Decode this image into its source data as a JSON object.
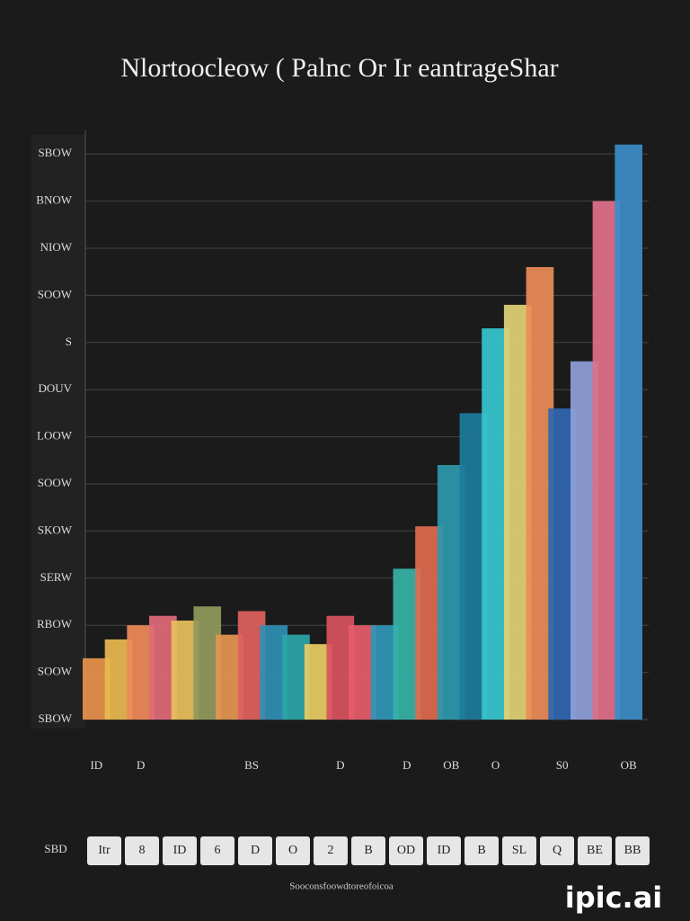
{
  "chart_data": {
    "type": "bar",
    "title": "Nlortoocleow ( Palnc Or Ir eantrageShar",
    "categories": [
      "ID",
      null,
      "D",
      null,
      null,
      null,
      null,
      "BS",
      null,
      null,
      null,
      "D",
      null,
      null,
      "D",
      null,
      "OB",
      null,
      "O",
      null,
      null,
      "S0",
      null,
      null,
      "OB"
    ],
    "values": [
      1.3,
      1.7,
      2.0,
      2.2,
      2.1,
      2.4,
      1.8,
      2.3,
      2.0,
      1.8,
      1.6,
      2.2,
      2.0,
      2.0,
      3.2,
      4.1,
      5.4,
      6.5,
      8.3,
      8.8,
      9.6,
      6.6,
      7.6,
      11.0,
      12.2
    ],
    "colors": [
      "#e8934c",
      "#e9b850",
      "#ef8a58",
      "#e06a78",
      "#e9c05a",
      "#8f9a5c",
      "#e59650",
      "#e0615e",
      "#2f8fb4",
      "#2aa5a8",
      "#e8cc62",
      "#d9525f",
      "#e85c6a",
      "#2f96b8",
      "#36b3a8",
      "#e06a4e",
      "#2d98ad",
      "#1d7c9c",
      "#36c6cf",
      "#e2d274",
      "#ec8c58",
      "#2f66b0",
      "#8fa0d8",
      "#e0708a",
      "#3b8cc8"
    ],
    "ylim": [
      0,
      12.5
    ],
    "yticks": [
      {
        "value": 0,
        "label": "SBOW"
      },
      {
        "value": 1,
        "label": "SOOW"
      },
      {
        "value": 2,
        "label": "RBOW"
      },
      {
        "value": 3,
        "label": "SERW"
      },
      {
        "value": 4,
        "label": "SKOW"
      },
      {
        "value": 5,
        "label": "SOOW"
      },
      {
        "value": 6,
        "label": "LOOW"
      },
      {
        "value": 7,
        "label": "DOUV"
      },
      {
        "value": 8,
        "label": "S"
      },
      {
        "value": 9,
        "label": "SOOW"
      },
      {
        "value": 10,
        "label": "NIOW"
      },
      {
        "value": 11,
        "label": "BNOW"
      },
      {
        "value": 12,
        "label": "SBOW"
      }
    ],
    "grid": true,
    "footer_label": "SBD",
    "footer_boxes": [
      "Itr",
      "8",
      "ID",
      "6",
      "D",
      "O",
      "2",
      "B",
      "OD",
      "ID",
      "B",
      "SL",
      "Q",
      "BE",
      "BB"
    ],
    "caption": "Sooconsfoowdtoreofoicoa",
    "watermark": "ipic.ai"
  }
}
